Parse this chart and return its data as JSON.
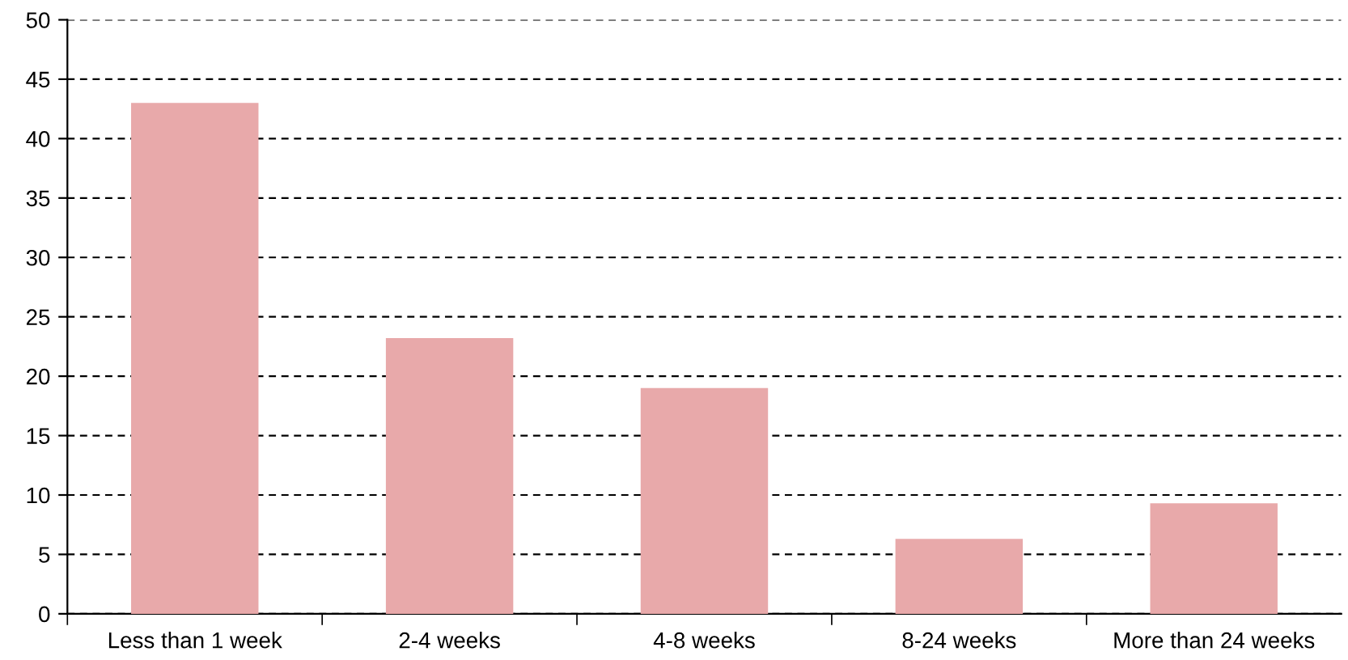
{
  "chart_data": {
    "type": "bar",
    "categories": [
      "Less than 1 week",
      "2-4 weeks",
      "4-8 weeks",
      "8-24 weeks",
      "More than 24 weeks"
    ],
    "values": [
      43,
      23.2,
      19,
      6.3,
      9.3
    ],
    "color": "#e8a9aa",
    "ylim": [
      0,
      50
    ],
    "yticks": [
      0,
      5,
      10,
      15,
      20,
      25,
      30,
      35,
      40,
      45,
      50
    ],
    "grid": "y",
    "legend": false
  }
}
